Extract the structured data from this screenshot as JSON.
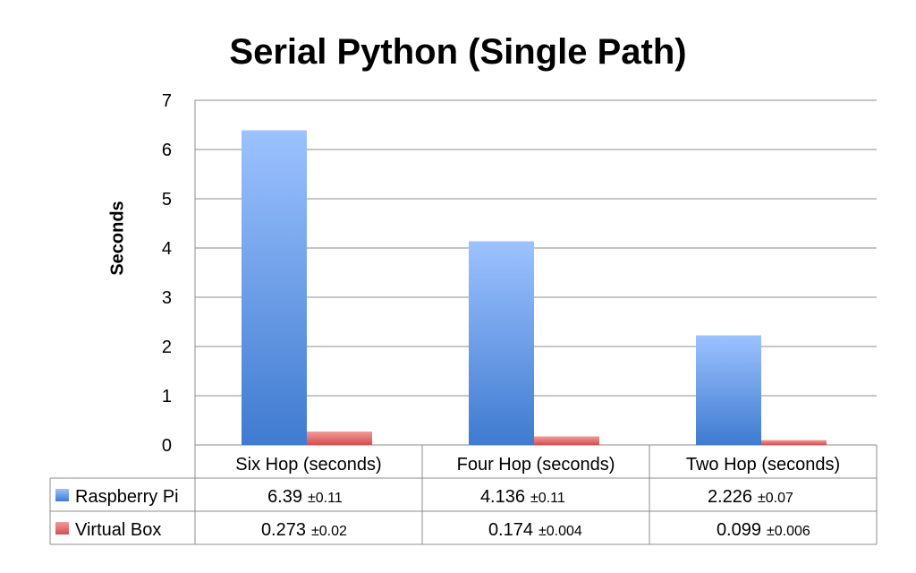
{
  "chart_data": {
    "type": "bar",
    "title": "Serial Python (Single Path)",
    "ylabel": "Seconds",
    "xlabel": "",
    "ylim": [
      0,
      7
    ],
    "yticks": [
      "0",
      "1",
      "2",
      "3",
      "4",
      "5",
      "6",
      "7"
    ],
    "grid": true,
    "categories": [
      "Six Hop (seconds)",
      "Four Hop (seconds)",
      "Two Hop (seconds)"
    ],
    "series": [
      {
        "name": "Raspberry Pi",
        "color": "#4f86d4",
        "values": [
          6.39,
          4.136,
          2.226
        ],
        "value_labels": [
          "6.39",
          "4.136",
          "2.226"
        ],
        "error_labels": [
          "±0.11",
          "±0.11",
          "±0.07"
        ]
      },
      {
        "name": "Virtual Box",
        "color": "#e06565",
        "values": [
          0.273,
          0.174,
          0.099
        ],
        "value_labels": [
          "0.273",
          "0.174",
          "0.099"
        ],
        "error_labels": [
          "±0.02",
          "±0.004",
          "±0.006"
        ]
      }
    ],
    "legend": "data-table"
  }
}
